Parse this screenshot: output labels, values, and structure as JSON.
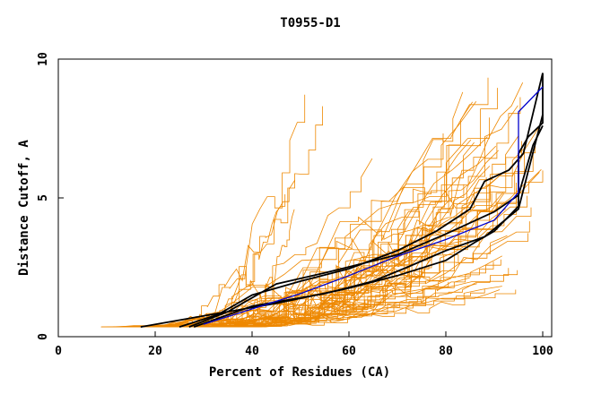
{
  "chart_data": {
    "type": "line",
    "title": "T0955-D1",
    "xlabel": "Percent of Residues (CA)",
    "ylabel": "Distance Cutoff, A",
    "xlim": [
      0,
      100
    ],
    "ylim": [
      0,
      10
    ],
    "x_ticks": [
      "0",
      "20",
      "40",
      "60",
      "80",
      "100"
    ],
    "y_ticks": [
      "0",
      "5",
      "10"
    ],
    "grid": false,
    "colors": {
      "background_models": "#ee8800",
      "highlight_black": "#000000",
      "highlight_blue": "#0000cc"
    },
    "background_series_count": 60,
    "highlight_series": [
      {
        "color": "#000000",
        "points": [
          [
            17,
            0.35
          ],
          [
            30,
            0.75
          ],
          [
            45,
            1.2
          ],
          [
            60,
            1.75
          ],
          [
            70,
            2.2
          ],
          [
            80,
            2.75
          ],
          [
            86,
            3.4
          ],
          [
            90,
            3.8
          ],
          [
            95,
            4.7
          ],
          [
            95,
            6.6
          ],
          [
            97,
            7.2
          ],
          [
            100,
            7.7
          ],
          [
            100,
            9.5
          ]
        ]
      },
      {
        "color": "#000000",
        "points": [
          [
            25,
            0.35
          ],
          [
            33,
            0.8
          ],
          [
            40,
            1.5
          ],
          [
            50,
            2.0
          ],
          [
            60,
            2.45
          ],
          [
            70,
            3.1
          ],
          [
            78,
            3.8
          ],
          [
            85,
            4.6
          ],
          [
            88,
            5.6
          ],
          [
            93,
            6.0
          ],
          [
            96,
            6.6
          ],
          [
            100,
            9.5
          ]
        ]
      },
      {
        "color": "#000000",
        "points": [
          [
            28,
            0.35
          ],
          [
            40,
            1.1
          ],
          [
            55,
            1.55
          ],
          [
            65,
            2.0
          ],
          [
            72,
            2.5
          ],
          [
            80,
            3.1
          ],
          [
            88,
            3.6
          ],
          [
            95,
            4.6
          ],
          [
            100,
            8.0
          ]
        ]
      },
      {
        "color": "#000000",
        "points": [
          [
            27,
            0.35
          ],
          [
            35,
            0.9
          ],
          [
            45,
            1.9
          ],
          [
            55,
            2.3
          ],
          [
            62,
            2.6
          ],
          [
            70,
            2.95
          ],
          [
            80,
            3.7
          ],
          [
            90,
            4.5
          ],
          [
            95,
            5.1
          ],
          [
            98,
            6.9
          ],
          [
            100,
            7.6
          ]
        ]
      },
      {
        "color": "#0000cc",
        "points": [
          [
            30,
            0.45
          ],
          [
            40,
            1.0
          ],
          [
            50,
            1.55
          ],
          [
            60,
            2.2
          ],
          [
            70,
            2.9
          ],
          [
            80,
            3.5
          ],
          [
            90,
            4.2
          ],
          [
            95,
            5.2
          ],
          [
            95,
            8.1
          ],
          [
            100,
            9.0
          ]
        ]
      }
    ]
  }
}
